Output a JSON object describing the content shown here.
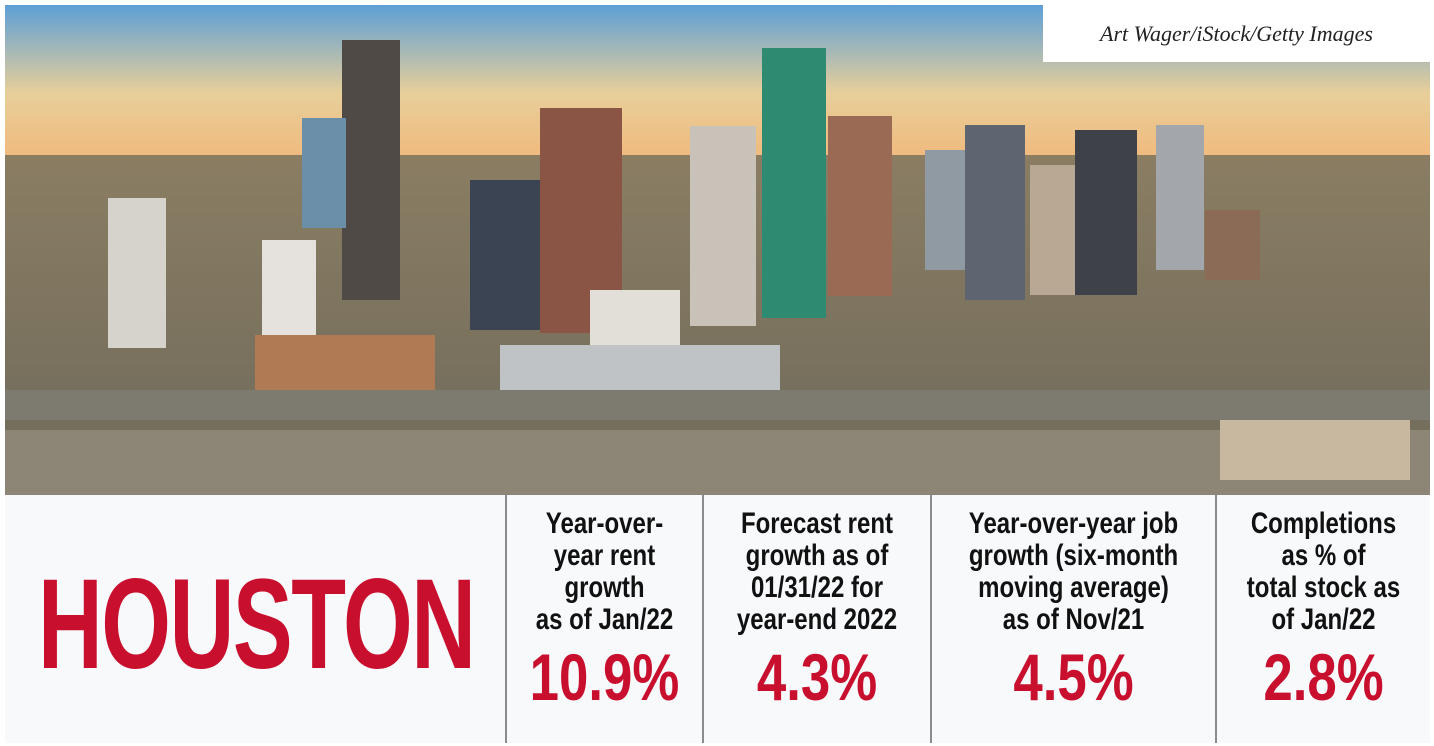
{
  "credit": "Art Wager/iStock/Getty Images",
  "city": "HOUSTON",
  "stats": [
    {
      "label_lines": [
        "Year-over-",
        "year rent",
        "growth",
        "as of Jan/22"
      ],
      "value": "10.9%"
    },
    {
      "label_lines": [
        "Forecast rent",
        "growth as of",
        "01/31/22 for",
        "year-end 2022"
      ],
      "value": "4.3%"
    },
    {
      "label_lines": [
        "Year-over-year job",
        "growth (six-month",
        "moving average)",
        "as of Nov/21"
      ],
      "value": "4.5%"
    },
    {
      "label_lines": [
        "Completions",
        "as % of",
        "total stock as",
        "of Jan/22"
      ],
      "value": "2.8%"
    }
  ]
}
